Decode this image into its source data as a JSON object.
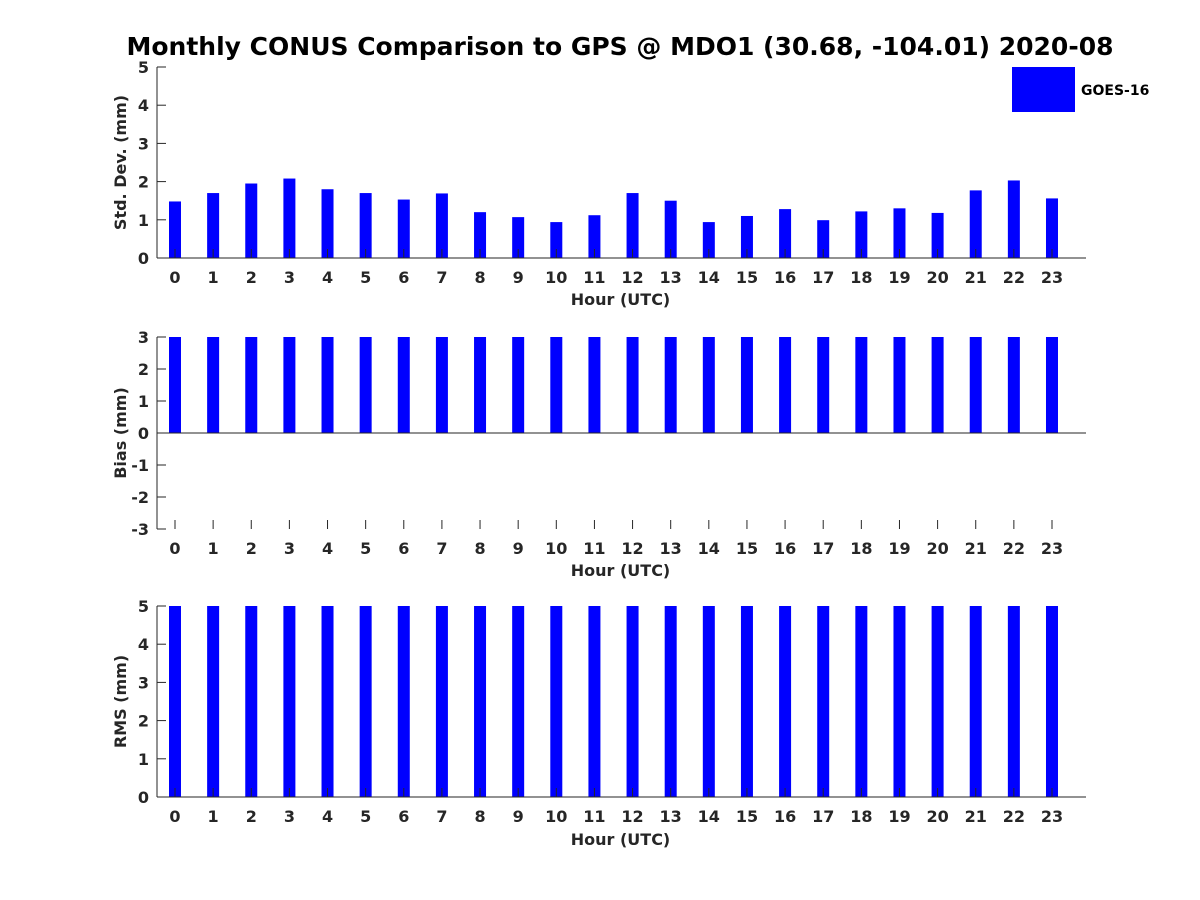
{
  "title": "Monthly CONUS Comparison to GPS @ MDO1 (30.68, -104.01) 2020-08",
  "legend": {
    "label": "GOES-16",
    "color": "#0000ff"
  },
  "chart_data": [
    {
      "type": "bar",
      "xlabel": "Hour (UTC)",
      "ylabel": "Std. Dev. (mm)",
      "ylim": [
        0,
        5
      ],
      "yticks": [
        "0",
        "1",
        "2",
        "3",
        "4",
        "5"
      ],
      "categories": [
        "0",
        "1",
        "2",
        "3",
        "4",
        "5",
        "6",
        "7",
        "8",
        "9",
        "10",
        "11",
        "12",
        "13",
        "14",
        "15",
        "16",
        "17",
        "18",
        "19",
        "20",
        "21",
        "22",
        "23"
      ],
      "series": [
        {
          "name": "GOES-16",
          "color": "#0000ff",
          "values": [
            1.48,
            1.7,
            1.95,
            2.08,
            1.8,
            1.7,
            1.53,
            1.69,
            1.2,
            1.07,
            0.94,
            1.12,
            1.7,
            1.5,
            0.94,
            1.1,
            1.28,
            0.99,
            1.22,
            1.3,
            1.18,
            1.77,
            2.03,
            1.56
          ]
        }
      ],
      "grid": false
    },
    {
      "type": "bar",
      "xlabel": "Hour (UTC)",
      "ylabel": "Bias (mm)",
      "ylim": [
        -3,
        3
      ],
      "yticks": [
        "-3",
        "-2",
        "-1",
        "0",
        "1",
        "2",
        "3"
      ],
      "categories": [
        "0",
        "1",
        "2",
        "3",
        "4",
        "5",
        "6",
        "7",
        "8",
        "9",
        "10",
        "11",
        "12",
        "13",
        "14",
        "15",
        "16",
        "17",
        "18",
        "19",
        "20",
        "21",
        "22",
        "23"
      ],
      "series": [
        {
          "name": "GOES-16",
          "color": "#0000ff",
          "values": [
            3,
            3,
            3,
            3,
            3,
            3,
            3,
            3,
            3,
            3,
            3,
            3,
            3,
            3,
            3,
            3,
            3,
            3,
            3,
            3,
            3,
            3,
            3,
            3
          ]
        }
      ],
      "grid": false
    },
    {
      "type": "bar",
      "xlabel": "Hour (UTC)",
      "ylabel": "RMS (mm)",
      "ylim": [
        0,
        5
      ],
      "yticks": [
        "0",
        "1",
        "2",
        "3",
        "4",
        "5"
      ],
      "categories": [
        "0",
        "1",
        "2",
        "3",
        "4",
        "5",
        "6",
        "7",
        "8",
        "9",
        "10",
        "11",
        "12",
        "13",
        "14",
        "15",
        "16",
        "17",
        "18",
        "19",
        "20",
        "21",
        "22",
        "23"
      ],
      "series": [
        {
          "name": "GOES-16",
          "color": "#0000ff",
          "values": [
            5,
            5,
            5,
            5,
            5,
            5,
            5,
            5,
            5,
            5,
            5,
            5,
            5,
            5,
            5,
            5,
            5,
            5,
            5,
            5,
            5,
            5,
            5,
            5
          ]
        }
      ],
      "grid": false
    }
  ]
}
